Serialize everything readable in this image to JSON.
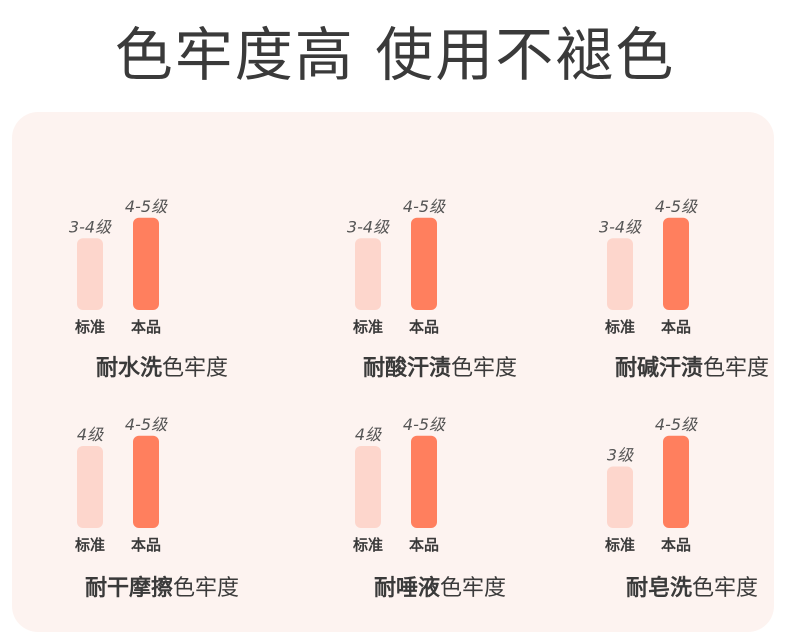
{
  "title": "色牢度高 使用不褪色",
  "colors": {
    "standard": "#fdd6cc",
    "product": "#ff7f5e",
    "panel": "#fdf3f0",
    "text": "#3a3a3a"
  },
  "chart_data": [
    {
      "type": "bar",
      "categories": [
        "标准",
        "本品"
      ],
      "values": [
        3.5,
        4.5
      ],
      "data_labels": [
        "3-4级",
        "4-5级"
      ],
      "caption_strong": "耐水洗",
      "caption_light": "色牢度",
      "ylim": [
        0,
        5
      ]
    },
    {
      "type": "bar",
      "categories": [
        "标准",
        "本品"
      ],
      "values": [
        3.5,
        4.5
      ],
      "data_labels": [
        "3-4级",
        "4-5级"
      ],
      "caption_strong": "耐酸汗渍",
      "caption_light": "色牢度",
      "ylim": [
        0,
        5
      ]
    },
    {
      "type": "bar",
      "categories": [
        "标准",
        "本品"
      ],
      "values": [
        3.5,
        4.5
      ],
      "data_labels": [
        "3-4级",
        "4-5级"
      ],
      "caption_strong": "耐碱汗渍",
      "caption_light": "色牢度",
      "ylim": [
        0,
        5
      ]
    },
    {
      "type": "bar",
      "categories": [
        "标准",
        "本品"
      ],
      "values": [
        4,
        4.5
      ],
      "data_labels": [
        "4级",
        "4-5级"
      ],
      "caption_strong": "耐干摩擦",
      "caption_light": "色牢度",
      "ylim": [
        0,
        5
      ]
    },
    {
      "type": "bar",
      "categories": [
        "标准",
        "本品"
      ],
      "values": [
        4,
        4.5
      ],
      "data_labels": [
        "4级",
        "4-5级"
      ],
      "caption_strong": "耐唾液",
      "caption_light": "色牢度",
      "ylim": [
        0,
        5
      ]
    },
    {
      "type": "bar",
      "categories": [
        "标准",
        "本品"
      ],
      "values": [
        3,
        4.5
      ],
      "data_labels": [
        "3级",
        "4-5级"
      ],
      "caption_strong": "耐皂洗",
      "caption_light": "色牢度",
      "ylim": [
        0,
        5
      ]
    }
  ]
}
